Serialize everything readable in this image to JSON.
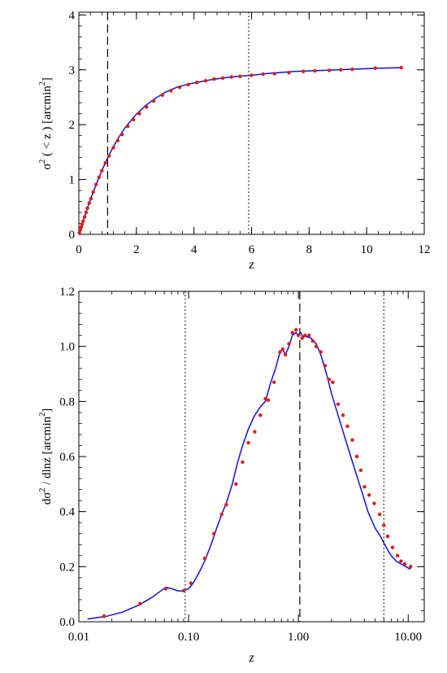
{
  "chart_data": [
    {
      "type": "line",
      "xlabel": "z",
      "ylabel_main": "σ",
      "ylabel_sup": "2",
      "ylabel_rest": " ( < z )  [arcmin",
      "ylabel_unit_sup": "2",
      "ylabel_close": "]",
      "xlim": [
        0,
        12
      ],
      "ylim": [
        0,
        4.05
      ],
      "xticks": [
        0,
        2,
        4,
        6,
        8,
        10,
        12
      ],
      "yticks": [
        0,
        1,
        2,
        3,
        4
      ],
      "xtick_labels": [
        "0",
        "2",
        "4",
        "6",
        "8",
        "10",
        "12"
      ],
      "ytick_labels": [
        "0",
        "1",
        "2",
        "3",
        "4"
      ],
      "vlines": [
        {
          "x": 1.0,
          "style": "dashed"
        },
        {
          "x": 5.9,
          "style": "dotted"
        }
      ],
      "series": [
        {
          "style": "line",
          "color": "#1010e0",
          "x": [
            0.0,
            0.05,
            0.1,
            0.15,
            0.2,
            0.3,
            0.4,
            0.5,
            0.6,
            0.7,
            0.8,
            0.9,
            1.0,
            1.2,
            1.4,
            1.6,
            1.8,
            2.0,
            2.3,
            2.6,
            3.0,
            3.4,
            3.8,
            4.2,
            4.6,
            5.0,
            5.5,
            6.0,
            6.5,
            7.0,
            7.5,
            8.0,
            8.5,
            9.0,
            9.5,
            10.0,
            10.5,
            11.2
          ],
          "y": [
            0.0,
            0.08,
            0.16,
            0.24,
            0.32,
            0.48,
            0.63,
            0.77,
            0.91,
            1.04,
            1.16,
            1.28,
            1.39,
            1.6,
            1.78,
            1.94,
            2.07,
            2.19,
            2.34,
            2.46,
            2.59,
            2.68,
            2.74,
            2.78,
            2.82,
            2.85,
            2.88,
            2.9,
            2.93,
            2.95,
            2.97,
            2.98,
            2.99,
            3.0,
            3.01,
            3.02,
            3.03,
            3.04
          ]
        },
        {
          "style": "points",
          "color": "#e01818",
          "x": [
            0.02,
            0.05,
            0.08,
            0.11,
            0.15,
            0.2,
            0.25,
            0.3,
            0.36,
            0.42,
            0.5,
            0.6,
            0.7,
            0.8,
            0.92,
            1.05,
            1.2,
            1.35,
            1.5,
            1.7,
            1.9,
            2.1,
            2.35,
            2.6,
            2.9,
            3.2,
            3.5,
            3.8,
            4.1,
            4.4,
            4.7,
            5.0,
            5.3,
            5.6,
            6.0,
            6.4,
            6.8,
            7.3,
            7.8,
            8.2,
            8.7,
            9.1,
            9.5,
            10.3,
            11.2
          ],
          "y": [
            0.03,
            0.08,
            0.13,
            0.18,
            0.24,
            0.32,
            0.4,
            0.48,
            0.57,
            0.65,
            0.77,
            0.91,
            1.04,
            1.16,
            1.3,
            1.43,
            1.58,
            1.71,
            1.82,
            1.97,
            2.09,
            2.2,
            2.32,
            2.43,
            2.54,
            2.62,
            2.68,
            2.73,
            2.77,
            2.8,
            2.83,
            2.85,
            2.87,
            2.88,
            2.9,
            2.92,
            2.93,
            2.95,
            2.97,
            2.98,
            2.99,
            3.0,
            3.01,
            3.03,
            3.04
          ]
        }
      ]
    },
    {
      "type": "line",
      "xscale": "log",
      "xlabel": "z",
      "ylabel_main": "dσ",
      "ylabel_sup": "2",
      "ylabel_rest": " / dlnz  [arcmin",
      "ylabel_unit_sup": "2",
      "ylabel_close": "]",
      "xlim": [
        0.01,
        14
      ],
      "ylim": [
        0,
        1.2
      ],
      "xticks": [
        0.01,
        0.1,
        1.0,
        10.0
      ],
      "xtick_labels": [
        "0.01",
        "0.10",
        "1.00",
        "10.00"
      ],
      "yticks": [
        0.0,
        0.2,
        0.4,
        0.6,
        0.8,
        1.0,
        1.2
      ],
      "ytick_labels": [
        "0.0",
        "0.2",
        "0.4",
        "0.6",
        "0.8",
        "1.0",
        "1.2"
      ],
      "vlines": [
        {
          "x": 0.093,
          "style": "dotted"
        },
        {
          "x": 1.03,
          "style": "dashed"
        },
        {
          "x": 6.0,
          "style": "dotted"
        }
      ],
      "series": [
        {
          "style": "line",
          "color": "#1010e0",
          "x": [
            0.012,
            0.018,
            0.025,
            0.035,
            0.045,
            0.055,
            0.062,
            0.07,
            0.08,
            0.09,
            0.1,
            0.11,
            0.125,
            0.14,
            0.16,
            0.18,
            0.2,
            0.22,
            0.25,
            0.28,
            0.31,
            0.35,
            0.4,
            0.45,
            0.5,
            0.56,
            0.62,
            0.68,
            0.72,
            0.76,
            0.82,
            0.88,
            0.95,
            1.0,
            1.05,
            1.1,
            1.2,
            1.3,
            1.45,
            1.6,
            1.8,
            2.0,
            2.3,
            2.6,
            3.0,
            3.4,
            3.8,
            4.3,
            5.0,
            5.6,
            6.3,
            7.0,
            7.8,
            8.6,
            9.5,
            10.5
          ],
          "y": [
            0.01,
            0.02,
            0.035,
            0.06,
            0.085,
            0.11,
            0.125,
            0.12,
            0.112,
            0.112,
            0.12,
            0.14,
            0.18,
            0.22,
            0.28,
            0.34,
            0.39,
            0.43,
            0.5,
            0.58,
            0.64,
            0.7,
            0.75,
            0.78,
            0.8,
            0.87,
            0.92,
            0.98,
            0.99,
            0.97,
            1.0,
            1.04,
            1.05,
            1.04,
            1.05,
            1.035,
            1.035,
            1.03,
            1.01,
            0.97,
            0.9,
            0.83,
            0.75,
            0.68,
            0.6,
            0.53,
            0.47,
            0.4,
            0.34,
            0.31,
            0.27,
            0.24,
            0.22,
            0.21,
            0.2,
            0.19
          ]
        },
        {
          "style": "points",
          "color": "#e01818",
          "x": [
            0.017,
            0.036,
            0.062,
            0.09,
            0.105,
            0.14,
            0.17,
            0.2,
            0.22,
            0.27,
            0.31,
            0.35,
            0.4,
            0.45,
            0.5,
            0.53,
            0.6,
            0.68,
            0.72,
            0.76,
            0.82,
            0.88,
            0.95,
            1.0,
            1.08,
            1.15,
            1.25,
            1.35,
            1.45,
            1.6,
            1.75,
            1.9,
            2.05,
            2.3,
            2.55,
            2.8,
            3.1,
            3.4,
            3.7,
            4.0,
            4.4,
            4.9,
            5.5,
            6.0,
            6.5,
            7.2,
            8.0,
            8.6,
            9.3,
            10.5
          ],
          "y": [
            0.02,
            0.065,
            0.12,
            0.113,
            0.14,
            0.23,
            0.32,
            0.39,
            0.425,
            0.5,
            0.58,
            0.65,
            0.69,
            0.75,
            0.81,
            0.805,
            0.87,
            0.98,
            0.99,
            0.97,
            1.01,
            1.05,
            1.06,
            1.04,
            1.03,
            1.04,
            1.04,
            1.02,
            1.0,
            0.98,
            0.93,
            0.88,
            0.87,
            0.79,
            0.75,
            0.71,
            0.66,
            0.6,
            0.55,
            0.49,
            0.46,
            0.43,
            0.39,
            0.35,
            0.31,
            0.27,
            0.24,
            0.22,
            0.21,
            0.2
          ]
        }
      ]
    }
  ]
}
